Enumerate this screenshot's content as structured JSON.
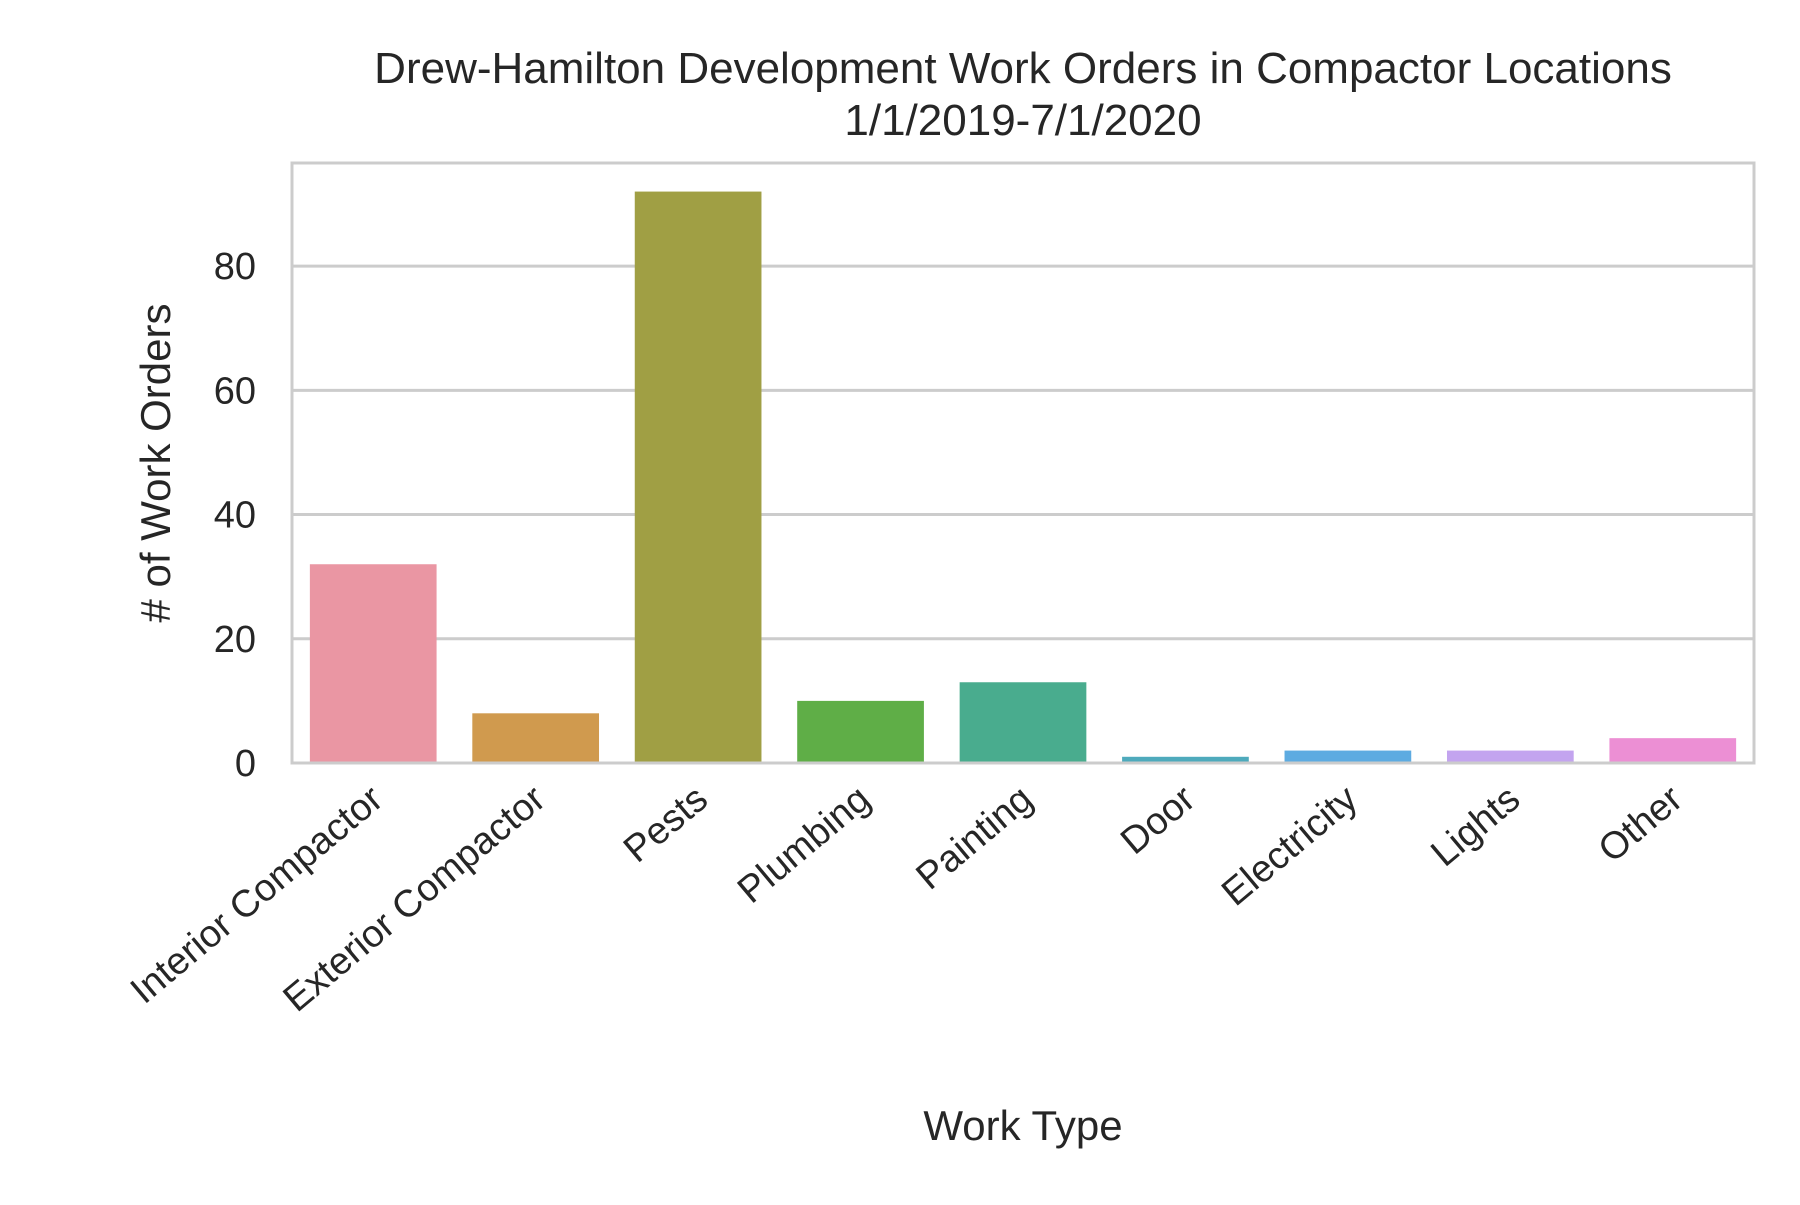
{
  "chart_data": {
    "type": "bar",
    "title": "Drew-Hamilton Development Work Orders in Compactor Locations",
    "subtitle": "1/1/2019-7/1/2020",
    "xlabel": "Work Type",
    "ylabel": "# of Work Orders",
    "categories": [
      "Interior Compactor",
      "Exterior Compactor",
      "Pests",
      "Plumbing",
      "Painting",
      "Door",
      "Electricity",
      "Lights",
      "Other"
    ],
    "values": [
      32,
      8,
      92,
      10,
      13,
      1,
      2,
      2,
      4
    ],
    "colors": [
      "#ea96a3",
      "#d09a4e",
      "#a09f44",
      "#5fae47",
      "#49ac8e",
      "#4eaabc",
      "#5dabe1",
      "#c3a4ef",
      "#ec8fd4"
    ],
    "ylim": [
      0,
      96.6
    ],
    "yticks": [
      0,
      20,
      40,
      60,
      80
    ],
    "grid": true,
    "legend": "none",
    "style": {
      "grid_color": "#cccccc",
      "spine_color": "#cccccc",
      "background": "#ffffff"
    }
  }
}
